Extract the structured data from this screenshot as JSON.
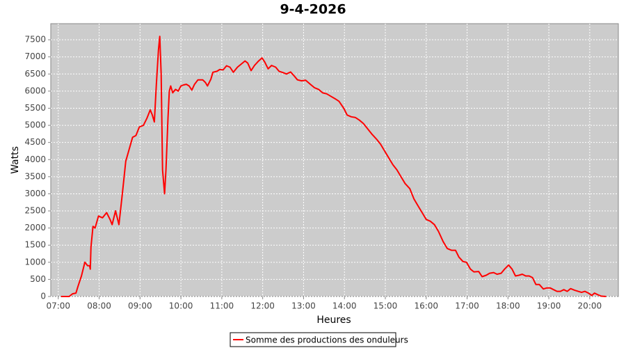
{
  "chart_data": {
    "type": "line",
    "title": "9-4-2026",
    "x_label": "Heures",
    "y_label": "Watts",
    "x": [
      "07:04",
      "07:16",
      "07:21",
      "07:26",
      "07:29",
      "07:34",
      "07:39",
      "07:43",
      "07:46",
      "07:47",
      "07:48",
      "07:51",
      "07:54",
      "07:59",
      "08:05",
      "08:11",
      "08:16",
      "08:19",
      "08:24",
      "08:29",
      "08:34",
      "08:39",
      "08:44",
      "08:49",
      "08:54",
      "08:59",
      "09:05",
      "09:10",
      "09:15",
      "09:18",
      "09:21",
      "09:24",
      "09:27",
      "09:29",
      "09:31",
      "09:33",
      "09:36",
      "09:38",
      "09:41",
      "09:43",
      "09:45",
      "09:48",
      "09:52",
      "09:56",
      "10:00",
      "10:04",
      "10:08",
      "10:12",
      "10:16",
      "10:20",
      "10:25",
      "10:32",
      "10:36",
      "10:39",
      "10:44",
      "10:47",
      "10:53",
      "10:57",
      "11:02",
      "11:07",
      "11:12",
      "11:17",
      "11:23",
      "11:28",
      "11:34",
      "11:38",
      "11:43",
      "11:48",
      "11:54",
      "11:59",
      "12:03",
      "12:08",
      "12:13",
      "12:19",
      "12:24",
      "12:30",
      "12:35",
      "12:41",
      "12:46",
      "12:51",
      "12:57",
      "13:03",
      "13:10",
      "13:16",
      "13:22",
      "13:28",
      "13:34",
      "13:40",
      "13:46",
      "13:52",
      "13:59",
      "14:04",
      "14:10",
      "14:16",
      "14:22",
      "14:28",
      "14:34",
      "14:40",
      "14:47",
      "14:53",
      "14:59",
      "15:05",
      "15:11",
      "15:17",
      "15:23",
      "15:29",
      "15:36",
      "15:42",
      "15:48",
      "15:54",
      "16:00",
      "16:06",
      "16:12",
      "16:18",
      "16:25",
      "16:31",
      "16:37",
      "16:43",
      "16:48",
      "16:54",
      "16:59",
      "17:05",
      "17:10",
      "17:17",
      "17:22",
      "17:28",
      "17:33",
      "17:39",
      "17:44",
      "17:50",
      "17:55",
      "18:01",
      "18:06",
      "18:11",
      "18:16",
      "18:21",
      "18:26",
      "18:31",
      "18:36",
      "18:41",
      "18:46",
      "18:52",
      "18:57",
      "19:02",
      "19:07",
      "19:12",
      "19:17",
      "19:22",
      "19:27",
      "19:32",
      "19:38",
      "19:43",
      "19:48",
      "19:53",
      "19:58",
      "20:03",
      "20:07",
      "20:12",
      "20:17",
      "20:24"
    ],
    "series": [
      {
        "name": "Somme des productions des onduleurs",
        "color": "#ff0000",
        "values": [
          0,
          0,
          80,
          100,
          300,
          600,
          1000,
          900,
          900,
          800,
          1450,
          2050,
          2000,
          2350,
          2300,
          2450,
          2250,
          2100,
          2500,
          2100,
          3000,
          3950,
          4300,
          4650,
          4700,
          4950,
          5000,
          5200,
          5450,
          5300,
          5100,
          6200,
          7200,
          7600,
          6500,
          3700,
          3000,
          3700,
          5200,
          6000,
          6150,
          5950,
          6050,
          6000,
          6150,
          6180,
          6200,
          6150,
          6030,
          6200,
          6330,
          6330,
          6250,
          6150,
          6350,
          6550,
          6580,
          6630,
          6620,
          6740,
          6700,
          6550,
          6700,
          6780,
          6880,
          6820,
          6600,
          6750,
          6880,
          6970,
          6850,
          6650,
          6750,
          6700,
          6580,
          6540,
          6500,
          6560,
          6450,
          6330,
          6300,
          6320,
          6200,
          6100,
          6050,
          5950,
          5920,
          5850,
          5780,
          5700,
          5500,
          5300,
          5250,
          5230,
          5150,
          5050,
          4900,
          4750,
          4600,
          4450,
          4250,
          4050,
          3850,
          3700,
          3500,
          3300,
          3150,
          2850,
          2650,
          2450,
          2250,
          2200,
          2100,
          1900,
          1600,
          1400,
          1350,
          1350,
          1150,
          1020,
          1000,
          800,
          720,
          730,
          580,
          620,
          680,
          700,
          650,
          680,
          800,
          920,
          800,
          600,
          620,
          650,
          600,
          600,
          550,
          350,
          350,
          220,
          250,
          250,
          200,
          150,
          150,
          200,
          150,
          230,
          180,
          150,
          120,
          150,
          100,
          30,
          100,
          50,
          10,
          0
        ]
      }
    ],
    "xlim": [
      "06:49",
      "20:42"
    ],
    "xticks": [
      "07:00",
      "08:00",
      "09:00",
      "10:00",
      "11:00",
      "12:00",
      "13:00",
      "14:00",
      "15:00",
      "16:00",
      "17:00",
      "18:00",
      "19:00",
      "20:00"
    ],
    "ylim": [
      0,
      7970
    ],
    "yticks": [
      0,
      500,
      1000,
      1500,
      2000,
      2500,
      3000,
      3500,
      4000,
      4500,
      5000,
      5500,
      6000,
      6500,
      7000,
      7500
    ],
    "grid": true,
    "legend": "bottom"
  }
}
